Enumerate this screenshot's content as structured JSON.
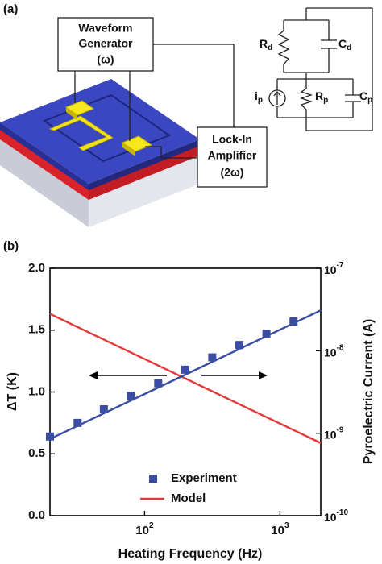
{
  "panel_a": {
    "label": "(a)",
    "waveform_generator": [
      "Waveform",
      "Generator",
      "(ω)"
    ],
    "lock_in_amplifier": [
      "Lock-In",
      "Amplifier",
      "(2ω)"
    ],
    "circuit": [
      {
        "symbol": "R",
        "subscript": "d"
      },
      {
        "symbol": "C",
        "subscript": "d"
      },
      {
        "symbol": "i",
        "subscript": "p"
      },
      {
        "symbol": "R",
        "subscript": "p"
      },
      {
        "symbol": "C",
        "subscript": "p"
      }
    ]
  },
  "chart_data": {
    "type": "line",
    "panel_label": "(b)",
    "x_label": "Heating Frequency (Hz)",
    "y_label": "ΔT (K)",
    "y2_label": "Pyroelectric Current (A)",
    "xscale": "log",
    "y2scale": "log",
    "xlim": [
      20,
      2000
    ],
    "xticks": [
      {
        "value": 100,
        "label": "10",
        "exponent": "2"
      },
      {
        "value": 1000,
        "label": "10",
        "exponent": "3"
      }
    ],
    "ylim": [
      0,
      2
    ],
    "yticks": [
      {
        "value": 0,
        "label": "0.0"
      },
      0.5,
      {
        "value": 1,
        "label": "1.0"
      },
      1.5,
      {
        "value": 2,
        "label": "2.0"
      }
    ],
    "y2lim": [
      1e-10,
      1e-07
    ],
    "y2ticks": [
      {
        "value": 1e-10,
        "label": "10",
        "exponent": "-10"
      },
      {
        "value": 1e-09,
        "label": "10",
        "exponent": "-9"
      },
      {
        "value": 1e-08,
        "label": "10",
        "exponent": "-8"
      },
      {
        "value": 1e-07,
        "label": "10",
        "exponent": "-7"
      }
    ],
    "legend_loc": "lower center",
    "series": [
      {
        "name": "Experiment",
        "color": "#3a4da3",
        "marker": "square",
        "line": false,
        "x": [
          20,
          32,
          50,
          79,
          126,
          200,
          316,
          501,
          794,
          1259
        ],
        "values": [
          0.64,
          0.75,
          0.86,
          0.97,
          1.07,
          1.18,
          1.28,
          1.38,
          1.47,
          1.57
        ]
      },
      {
        "name": "Model",
        "color": "#e23a3a",
        "line": true,
        "axis": "y2",
        "x": [
          20,
          2000
        ],
        "values": [
          2.8e-08,
          7.6e-10
        ]
      },
      {
        "color": "#3a4da3",
        "line": true,
        "x": [
          20,
          2000
        ],
        "values": [
          0.62,
          1.66
        ]
      }
    ]
  }
}
